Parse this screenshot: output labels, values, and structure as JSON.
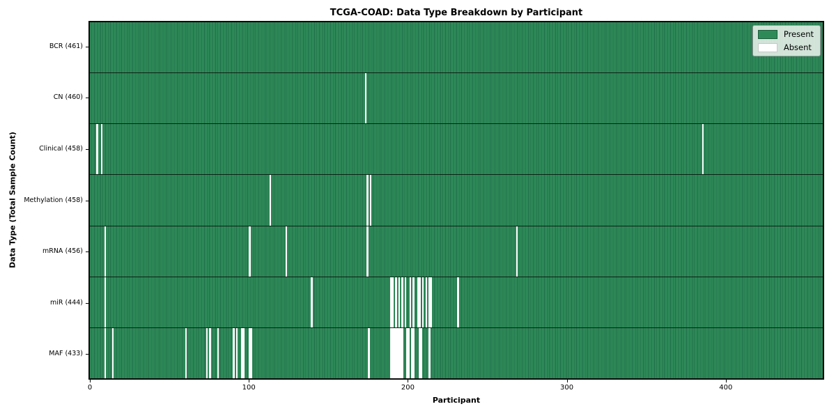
{
  "title": "TCGA-COAD: Data Type Breakdown by Participant",
  "legend": {
    "present_label": "Present",
    "absent_label": "Absent"
  },
  "colors": {
    "present": "#2e8b57",
    "present_edge": "#1f6b46",
    "absent": "#ffffff",
    "legend_bg": "#f0f4f0"
  },
  "chart_data": {
    "type": "heatmap",
    "title": "TCGA-COAD: Data Type Breakdown by Participant",
    "xlabel": "Participant",
    "ylabel": "Data Type (Total Sample Count)",
    "n_participants": 461,
    "x_ticks": [
      0,
      100,
      200,
      300,
      400
    ],
    "legend": [
      "Present",
      "Absent"
    ],
    "legend_position": "upper right",
    "grid": false,
    "rows": [
      {
        "data_type": "BCR",
        "label": "BCR (461)",
        "present_count": 461,
        "absent_participants": []
      },
      {
        "data_type": "CN",
        "label": "CN (460)",
        "present_count": 460,
        "absent_participants": [
          173
        ]
      },
      {
        "data_type": "Clinical",
        "label": "Clinical (458)",
        "present_count": 458,
        "absent_participants": [
          4,
          7,
          385
        ]
      },
      {
        "data_type": "Methylation",
        "label": "Methylation (458)",
        "present_count": 458,
        "absent_participants": [
          113,
          174,
          176
        ]
      },
      {
        "data_type": "mRNA",
        "label": "mRNA (456)",
        "present_count": 456,
        "absent_participants": [
          9,
          100,
          123,
          174,
          268
        ]
      },
      {
        "data_type": "miR",
        "label": "miR (444)",
        "present_count": 444,
        "absent_participants": [
          9,
          139,
          189,
          190,
          192,
          194,
          196,
          198,
          201,
          203,
          206,
          207,
          209,
          211,
          213,
          214,
          231
        ]
      },
      {
        "data_type": "MAF",
        "label": "MAF (433)",
        "present_count": 433,
        "absent_participants": [
          9,
          14,
          60,
          73,
          75,
          80,
          90,
          92,
          95,
          96,
          100,
          101,
          175,
          189,
          190,
          191,
          192,
          193,
          194,
          195,
          196,
          199,
          200,
          202,
          203,
          207,
          208,
          213
        ]
      }
    ]
  }
}
